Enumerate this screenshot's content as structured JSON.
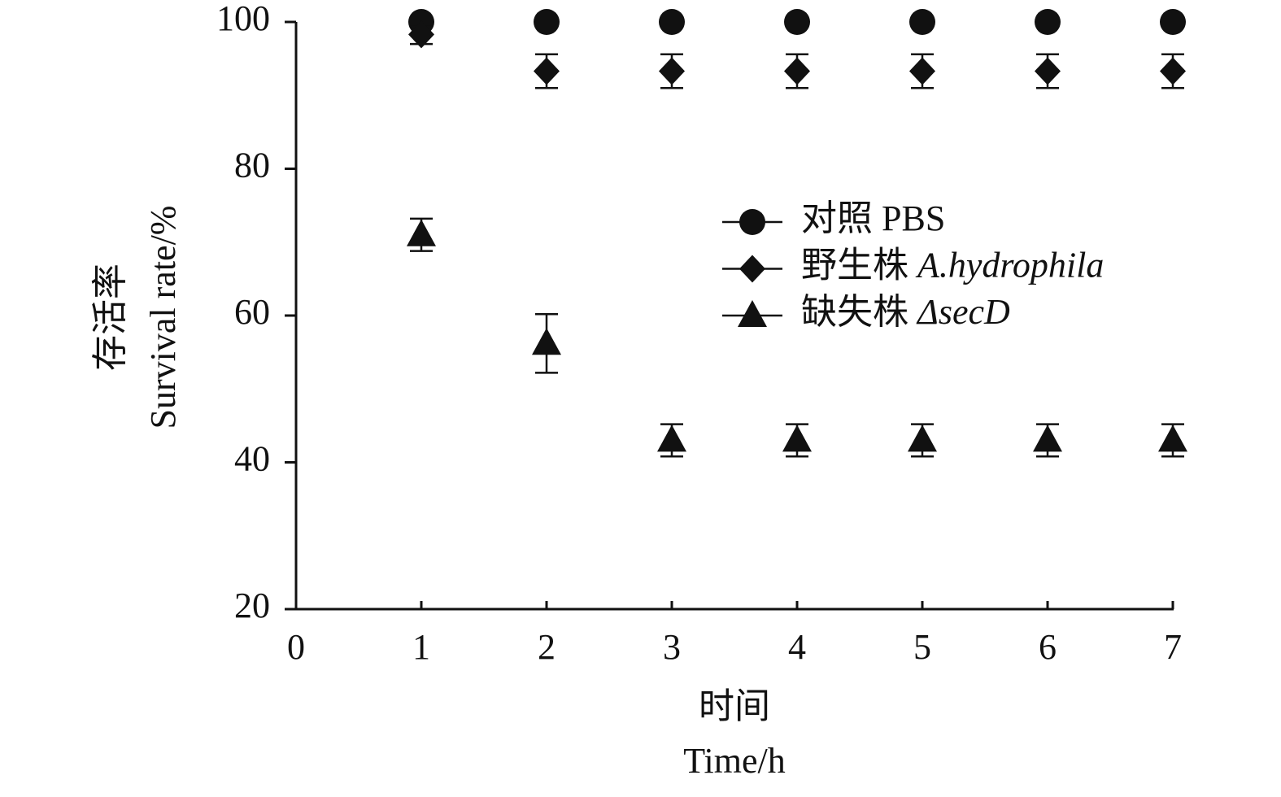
{
  "chart_data": {
    "type": "scatter",
    "xlabel": [
      "时间",
      "Time/h"
    ],
    "ylabel": [
      "存活率",
      "Survival rate/%"
    ],
    "x": [
      1,
      2,
      3,
      4,
      5,
      6,
      7
    ],
    "xlim": [
      0,
      7
    ],
    "xticks": [
      0,
      1,
      2,
      3,
      4,
      5,
      6,
      7
    ],
    "ylim": [
      20,
      100
    ],
    "yticks": [
      20,
      40,
      60,
      80,
      100
    ],
    "legend": "upper right",
    "series": [
      {
        "name": "对照 PBS",
        "color": "#111111",
        "marker": "circle",
        "values": [
          100,
          100,
          100,
          100,
          100,
          100,
          100
        ],
        "errors": [
          0,
          0,
          0,
          0,
          0,
          0,
          0
        ]
      },
      {
        "name": "野生株 A.hydrophila",
        "color": "#111111",
        "marker": "diamond",
        "values": [
          98.3,
          93.3,
          93.3,
          93.3,
          93.3,
          93.3,
          93.3
        ],
        "errors": [
          1.3,
          2.3,
          2.3,
          2.3,
          2.3,
          2.3,
          2.3
        ]
      },
      {
        "name": "缺失株 ΔsecD",
        "color": "#111111",
        "marker": "triangle",
        "values": [
          71,
          56.2,
          43,
          43,
          43,
          43,
          43
        ],
        "errors": [
          2.2,
          4,
          2.2,
          2.2,
          2.2,
          2.2,
          2.2
        ]
      }
    ]
  }
}
